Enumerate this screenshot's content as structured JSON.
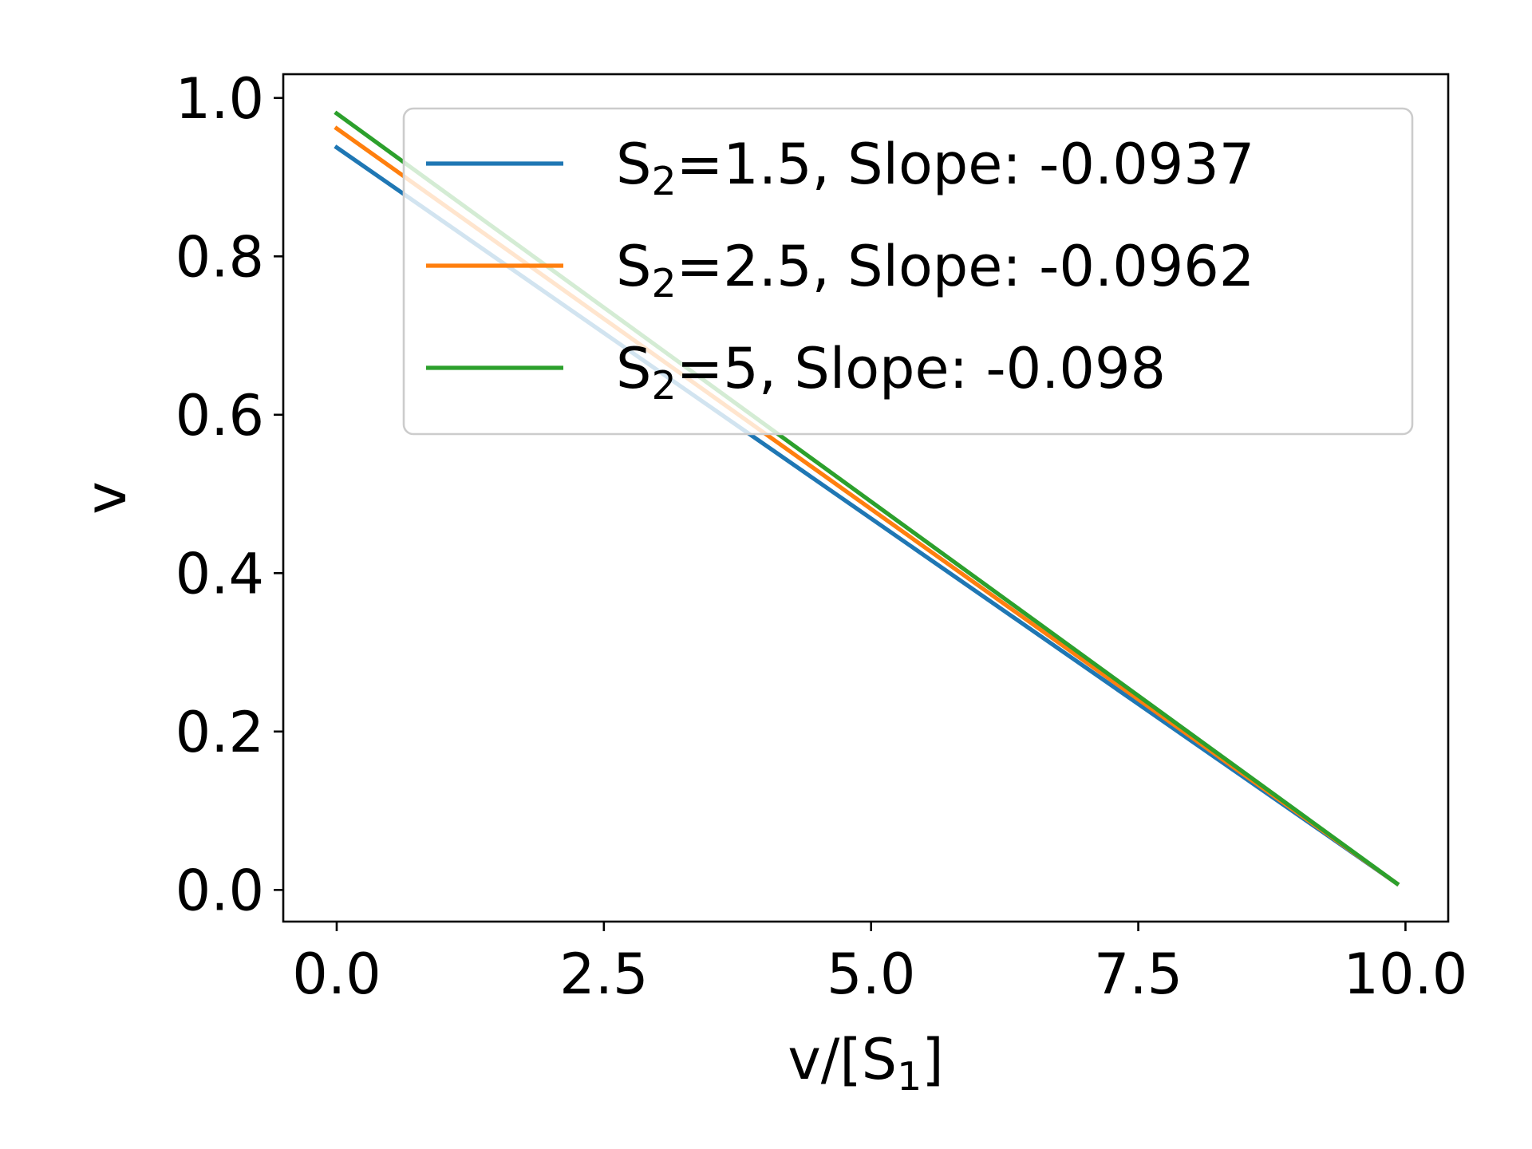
{
  "chart_data": {
    "type": "line",
    "xlabel": "v/[S",
    "xlabel_sub": "1",
    "xlabel_suffix": "]",
    "ylabel": "v",
    "xlim": [
      -0.5,
      10.4
    ],
    "ylim": [
      -0.04,
      1.03
    ],
    "xticks": [
      0.0,
      2.5,
      5.0,
      7.5,
      10.0
    ],
    "xtick_labels": [
      "0.0",
      "2.5",
      "5.0",
      "7.5",
      "10.0"
    ],
    "yticks": [
      0.0,
      0.2,
      0.4,
      0.6,
      0.8,
      1.0
    ],
    "ytick_labels": [
      "0.0",
      "0.2",
      "0.4",
      "0.6",
      "0.8",
      "1.0"
    ],
    "grid": false,
    "legend_position": "top-right",
    "series": [
      {
        "name_prefix": "S",
        "name_sub": "2",
        "name_suffix": "=1.5, Slope: -0.0937",
        "color": "#1f77b4",
        "x": [
          0.0,
          9.92
        ],
        "y": [
          0.9375,
          0.008
        ]
      },
      {
        "name_prefix": "S",
        "name_sub": "2",
        "name_suffix": "=2.5, Slope: -0.0962",
        "color": "#ff7f0e",
        "x": [
          0.0,
          9.92
        ],
        "y": [
          0.9615,
          0.008
        ]
      },
      {
        "name_prefix": "S",
        "name_sub": "2",
        "name_suffix": "=5, Slope: -0.098",
        "color": "#2ca02c",
        "x": [
          0.0,
          9.92
        ],
        "y": [
          0.9804,
          0.008
        ]
      }
    ]
  }
}
